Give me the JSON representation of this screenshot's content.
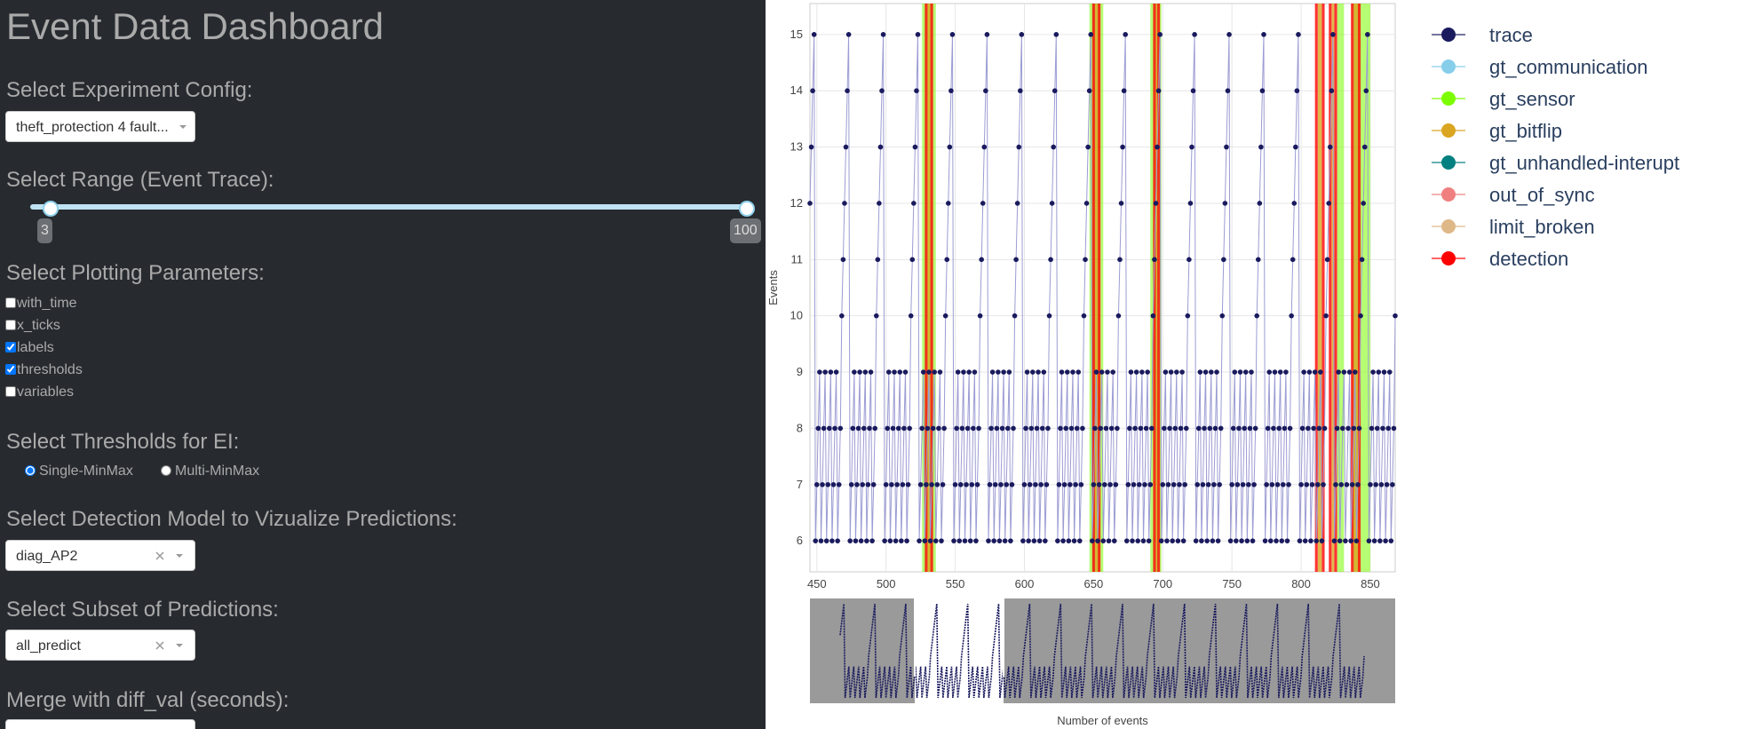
{
  "sidebar": {
    "title": "Event Data Dashboard",
    "config_label": "Select Experiment Config:",
    "config_value": "theft_protection 4 fault...",
    "range_label": "Select Range (Event Trace):",
    "range_min": 3,
    "range_max": 100,
    "params_label": "Select Plotting Parameters:",
    "params": [
      {
        "label": "with_time",
        "checked": false
      },
      {
        "label": "x_ticks",
        "checked": false
      },
      {
        "label": "labels",
        "checked": true
      },
      {
        "label": "thresholds",
        "checked": true
      },
      {
        "label": "variables",
        "checked": false
      }
    ],
    "thresholds_label": "Select Thresholds for EI:",
    "thresholds": [
      {
        "label": "Single-MinMax",
        "checked": true
      },
      {
        "label": "Multi-MinMax",
        "checked": false
      }
    ],
    "model_label": "Select Detection Model to Vizualize Predictions:",
    "model_value": "diag_AP2",
    "subset_label": "Select Subset of Predictions:",
    "subset_value": "all_predict",
    "merge_label": "Merge with diff_val (seconds):"
  },
  "chart_data": {
    "type": "line",
    "xlabel": "Number of events",
    "ylabel": "Events",
    "xlim": [
      445,
      868
    ],
    "ylim": [
      5.45,
      15.55
    ],
    "xticks": [
      450,
      500,
      550,
      600,
      650,
      700,
      750,
      800,
      850
    ],
    "yticks": [
      6,
      7,
      8,
      9,
      10,
      11,
      12,
      13,
      14,
      15
    ],
    "grid": true,
    "series": [
      {
        "name": "trace",
        "color": "#1a1a5e",
        "x": [
          445,
          446,
          447,
          448,
          449,
          450,
          451,
          452,
          453,
          454,
          455,
          456,
          457,
          458,
          459,
          460,
          461,
          462,
          463,
          464,
          465,
          466,
          467,
          468,
          469,
          470,
          471,
          472,
          473,
          474,
          475,
          476,
          477,
          478,
          479,
          480,
          481,
          482,
          483,
          484,
          485,
          486,
          487,
          488,
          489,
          490,
          491,
          492,
          493,
          494,
          495,
          496,
          497,
          498,
          499,
          500,
          501,
          502,
          503,
          504,
          505,
          506,
          507,
          508,
          509,
          510,
          511,
          512,
          513,
          514,
          515,
          516,
          517,
          518,
          519,
          520,
          521,
          522,
          523,
          524,
          525,
          526,
          527,
          528,
          529,
          530,
          531,
          532,
          533,
          534,
          535,
          536,
          537,
          538,
          539,
          540,
          541,
          542,
          543,
          544,
          545,
          546,
          547,
          548,
          549,
          550,
          551,
          552,
          553,
          554,
          555,
          556,
          557,
          558,
          559,
          560,
          561,
          562,
          563,
          564,
          565,
          566,
          567,
          568,
          569,
          570,
          571,
          572,
          573,
          574,
          575,
          576,
          577,
          578,
          579,
          580,
          581,
          582,
          583,
          584,
          585,
          586,
          587,
          588,
          589,
          590,
          591,
          592,
          593,
          594,
          595,
          596,
          597,
          598,
          599,
          600,
          601,
          602,
          603,
          604,
          605,
          606,
          607,
          608,
          609,
          610,
          611,
          612,
          613,
          614,
          615,
          616,
          617,
          618,
          619,
          620,
          621,
          622,
          623,
          624,
          625,
          626,
          627,
          628,
          629,
          630,
          631,
          632,
          633,
          634,
          635,
          636,
          637,
          638,
          639,
          640,
          641,
          642,
          643,
          644,
          645,
          646,
          647,
          648,
          649,
          650,
          651,
          652,
          653,
          654,
          655,
          656,
          657,
          658,
          659,
          660,
          661,
          662,
          663,
          664,
          665,
          666,
          667,
          668,
          669,
          670,
          671,
          672,
          673,
          674,
          675,
          676,
          677,
          678,
          679,
          680,
          681,
          682,
          683,
          684,
          685,
          686,
          687,
          688,
          689,
          690,
          691,
          692,
          693,
          694,
          695,
          696,
          697,
          698,
          699,
          700,
          701,
          702,
          703,
          704,
          705,
          706,
          707,
          708,
          709,
          710,
          711,
          712,
          713,
          714,
          715,
          716,
          717,
          718,
          719,
          720,
          721,
          722,
          723,
          724,
          725,
          726,
          727,
          728,
          729,
          730,
          731,
          732,
          733,
          734,
          735,
          736,
          737,
          738,
          739,
          740,
          741,
          742,
          743,
          744,
          745,
          746,
          747,
          748,
          749,
          750,
          751,
          752,
          753,
          754,
          755,
          756,
          757,
          758,
          759,
          760,
          761,
          762,
          763,
          764,
          765,
          766,
          767,
          768,
          769,
          770,
          771,
          772,
          773,
          774,
          775,
          776,
          777,
          778,
          779,
          780,
          781,
          782,
          783,
          784,
          785,
          786,
          787,
          788,
          789,
          790,
          791,
          792,
          793,
          794,
          795,
          796,
          797,
          798,
          799,
          800,
          801,
          802,
          803,
          804,
          805,
          806,
          807,
          808,
          809,
          810,
          811,
          812,
          813,
          814,
          815,
          816,
          817,
          818,
          819,
          820,
          821,
          822,
          823,
          824,
          825,
          826,
          827,
          828,
          829,
          830,
          831,
          832,
          833,
          834,
          835,
          836,
          837,
          838,
          839,
          840,
          841,
          842,
          843,
          844,
          845,
          846,
          847,
          848,
          849,
          850,
          851,
          852,
          853,
          854,
          855,
          856,
          857,
          858,
          859,
          860,
          861,
          862,
          863,
          864,
          865,
          866,
          867,
          868
        ],
        "values": [
          12,
          13,
          14,
          15,
          6,
          7,
          8,
          9,
          6,
          7,
          8,
          9,
          6,
          7,
          8,
          9,
          6,
          7,
          8,
          9,
          6,
          7,
          8,
          10,
          11,
          12,
          13,
          14,
          15,
          6,
          7,
          8,
          9,
          6,
          7,
          8,
          9,
          6,
          7,
          8,
          9,
          6,
          7,
          8,
          9,
          6,
          7,
          8,
          10,
          11,
          12,
          13,
          14,
          15,
          6,
          7,
          8,
          9,
          6,
          7,
          8,
          9,
          6,
          7,
          8,
          9,
          6,
          7,
          8,
          9,
          6,
          7,
          8,
          10,
          11,
          12,
          13,
          14,
          15,
          6,
          7,
          8,
          9,
          6,
          7,
          8,
          9,
          6,
          7,
          8,
          9,
          6,
          7,
          8,
          9,
          6,
          7,
          8,
          10,
          11,
          12,
          13,
          14,
          15,
          6,
          7,
          8,
          9,
          6,
          7,
          8,
          9,
          6,
          7,
          8,
          9,
          6,
          7,
          8,
          9,
          6,
          7,
          8,
          10,
          11,
          12,
          13,
          14,
          15,
          6,
          7,
          8,
          9,
          6,
          7,
          8,
          9,
          6,
          7,
          8,
          9,
          6,
          7,
          8,
          9,
          6,
          7,
          8,
          10,
          11,
          12,
          13,
          14,
          15,
          6,
          7,
          8,
          9,
          6,
          7,
          8,
          9,
          6,
          7,
          8,
          9,
          6,
          7,
          8,
          9,
          6,
          7,
          8,
          10,
          11,
          12,
          13,
          14,
          15,
          6,
          7,
          8,
          9,
          6,
          7,
          8,
          9,
          6,
          7,
          8,
          9,
          6,
          7,
          8,
          9,
          6,
          7,
          8,
          10,
          11,
          12,
          13,
          14,
          15,
          6,
          7,
          8,
          9,
          6,
          7,
          8,
          9,
          6,
          7,
          8,
          9,
          6,
          7,
          8,
          9,
          6,
          7,
          8,
          10,
          11,
          12,
          13,
          14,
          15,
          6,
          7,
          8,
          9,
          6,
          7,
          8,
          9,
          6,
          7,
          8,
          9,
          6,
          7,
          8,
          9,
          6,
          7,
          8,
          10,
          11,
          12,
          13,
          14,
          15,
          6,
          7,
          8,
          9,
          6,
          7,
          8,
          9,
          6,
          7,
          8,
          9,
          6,
          7,
          8,
          9,
          6,
          7,
          8,
          10,
          11,
          12,
          13,
          14,
          15,
          6,
          7,
          8,
          9,
          6,
          7,
          8,
          9,
          6,
          7,
          8,
          9,
          6,
          7,
          8,
          9,
          6,
          7,
          8,
          10,
          11,
          12,
          13,
          14,
          15,
          6,
          7,
          8,
          9,
          6,
          7,
          8,
          9,
          6,
          7,
          8,
          9,
          6,
          7,
          8,
          9,
          6,
          7,
          8,
          10,
          11,
          12,
          13,
          14,
          15,
          6,
          7,
          8,
          9,
          6,
          7,
          8,
          9,
          6,
          7,
          8,
          9,
          6,
          7,
          8,
          9,
          6,
          7,
          8,
          10,
          11,
          12,
          13,
          14,
          15,
          6,
          7,
          8,
          9,
          6,
          7,
          8,
          9,
          6,
          7,
          8,
          9,
          6,
          7,
          8,
          9,
          6,
          7,
          8,
          10,
          11,
          12,
          13,
          14,
          15,
          6,
          7,
          8,
          9,
          6,
          7,
          8,
          9,
          6,
          7,
          8,
          9,
          6,
          7,
          8,
          9,
          6,
          7,
          8,
          10,
          11,
          12,
          13,
          14,
          15,
          6,
          7,
          8,
          9,
          6,
          7,
          8,
          9,
          6,
          7,
          8,
          9,
          6,
          7,
          8,
          9,
          6,
          7,
          8,
          10
        ]
      },
      {
        "name": "gt_communication",
        "color": "#87ceeb"
      },
      {
        "name": "gt_sensor",
        "color": "#7cfc00",
        "regions": [
          [
            526,
            536
          ],
          [
            647,
            657
          ],
          [
            691,
            699
          ],
          [
            826,
            831
          ],
          [
            837,
            850
          ]
        ]
      },
      {
        "name": "gt_bitflip",
        "color": "#daa520",
        "regions": [
          [
            530,
            532
          ],
          [
            651,
            653
          ],
          [
            695,
            696
          ],
          [
            812,
            815
          ],
          [
            822,
            824
          ],
          [
            838,
            841
          ]
        ]
      },
      {
        "name": "gt_unhandled-interupt",
        "color": "#008080"
      },
      {
        "name": "out_of_sync",
        "color": "#f08080"
      },
      {
        "name": "limit_broken",
        "color": "#deb887"
      },
      {
        "name": "detection",
        "color": "#ff0000",
        "regions": [
          [
            528,
            530
          ],
          [
            532,
            534
          ],
          [
            649,
            651
          ],
          [
            653,
            655
          ],
          [
            693,
            695
          ],
          [
            696,
            698
          ],
          [
            810,
            812
          ],
          [
            815,
            817
          ],
          [
            820,
            822
          ],
          [
            824,
            826
          ],
          [
            836,
            838
          ],
          [
            841,
            843
          ]
        ]
      }
    ]
  }
}
